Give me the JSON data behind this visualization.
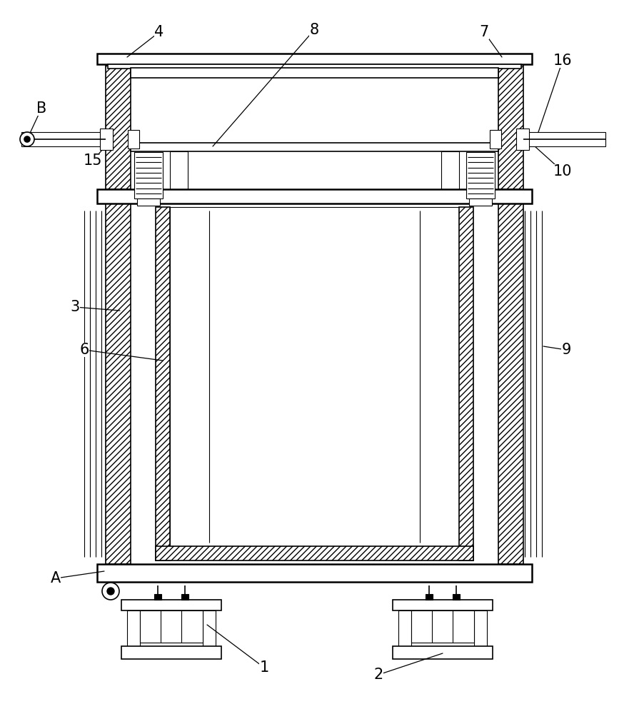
{
  "bg_color": "#ffffff",
  "line_color": "#000000",
  "figsize": [
    8.81,
    10.0
  ],
  "dpi": 100
}
